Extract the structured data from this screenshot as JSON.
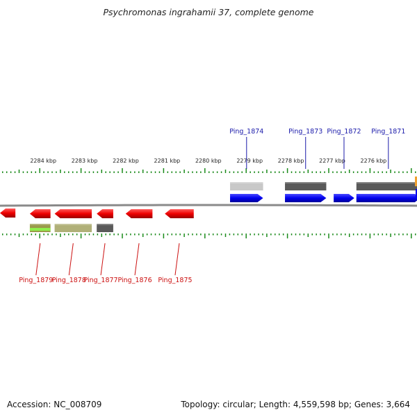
{
  "title": "Psychromonas ingrahamii 37, complete genome",
  "footer": {
    "accession": "Accession: NC_008709",
    "stats": "Topology: circular; Length: 4,559,598 bp; Genes: 3,664"
  },
  "colors": {
    "forward_cds": "#0000ee",
    "reverse_cds": "#ee0000",
    "forward_label": "#1a1aaa",
    "reverse_label": "#cc1111",
    "tick": "#1a8a1a",
    "backbone": "#8a8a8a"
  },
  "scale_labels": [
    "2284 kbp",
    "2283 kbp",
    "2282 kbp",
    "2281 kbp",
    "2280 kbp",
    "2279 kbp",
    "2278 kbp",
    "2277 kbp",
    "2276 kbp"
  ],
  "forward_genes": [
    {
      "label": "Ping_1874",
      "start_kbp": 2279.39,
      "end_kbp": 2278.59,
      "feature_color": "#c8c8c8"
    },
    {
      "label": "Ping_1873",
      "start_kbp": 2278.06,
      "end_kbp": 2277.06,
      "feature_color": "#5a5a5a"
    },
    {
      "label": "Ping_1872",
      "start_kbp": 2276.88,
      "end_kbp": 2276.38,
      "feature_color": null
    },
    {
      "label": "Ping_1871",
      "start_kbp": 2276.33,
      "end_kbp": 2274.78,
      "feature_color": "#5a5a5a"
    }
  ],
  "reverse_genes": [
    {
      "label": "Ping_1879",
      "start_kbp": 2284.24,
      "end_kbp": 2283.74,
      "feature_color": "#9a9a4a"
    },
    {
      "label": "Ping_1878",
      "start_kbp": 2283.64,
      "end_kbp": 2282.74,
      "feature_color": "#b0b078"
    },
    {
      "label": "Ping_1877",
      "start_kbp": 2282.62,
      "end_kbp": 2282.22,
      "feature_color": "#5a5a5a"
    },
    {
      "label": "Ping_1876",
      "start_kbp": 2281.92,
      "end_kbp": 2281.27,
      "feature_color": null
    },
    {
      "label": "Ping_1875",
      "start_kbp": 2280.97,
      "end_kbp": 2280.27,
      "feature_color": null
    }
  ],
  "edge_features": [
    {
      "start_kbp": 2285.19,
      "end_kbp": 2284.59,
      "strand": "reverse"
    }
  ]
}
